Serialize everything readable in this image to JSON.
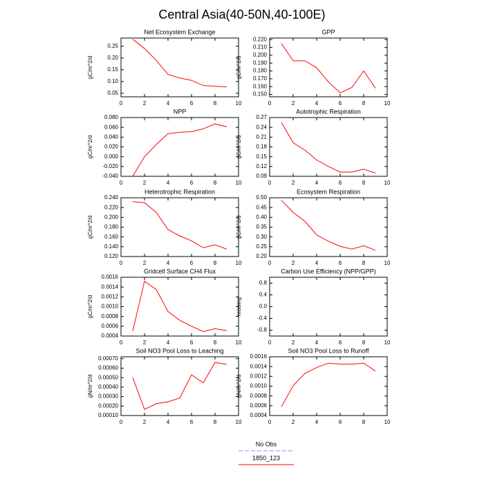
{
  "title": "Central Asia(40-50N,40-100E)",
  "legend": [
    {
      "name": "No Obs",
      "color": "#8c8cf0",
      "dash": true
    },
    {
      "name": "1850_123",
      "color": "#ff0000",
      "dash": false
    }
  ],
  "chart_data": [
    {
      "type": "line",
      "title": "Net Ecosystem Exchange",
      "ylabel": "gC/m^2/d",
      "xlim": [
        0,
        10
      ],
      "xticks": [
        0,
        2,
        4,
        6,
        8,
        10
      ],
      "ylim": [
        0.035,
        0.285
      ],
      "yticks": [
        0.05,
        {
          "value": 0.1,
          "label": "0.10"
        },
        0.15,
        {
          "value": 0.2,
          "label": "0.20"
        },
        0.25
      ],
      "x": [
        1,
        2,
        3,
        4,
        5,
        6,
        7,
        8,
        9
      ],
      "series": [
        {
          "color": "#ff0000",
          "values": [
            0.28,
            0.24,
            0.19,
            0.13,
            0.115,
            0.105,
            0.083,
            0.08,
            0.077
          ]
        }
      ]
    },
    {
      "type": "line",
      "title": "GPP",
      "ylabel": "gC/m^2/d",
      "xlim": [
        0,
        10
      ],
      "xticks": [
        0,
        2,
        4,
        6,
        8,
        10
      ],
      "ylim": [
        0.147,
        0.222
      ],
      "yticks": [
        {
          "value": 0.15,
          "label": "0.150"
        },
        {
          "value": 0.16,
          "label": "0.160"
        },
        {
          "value": 0.17,
          "label": "0.170"
        },
        {
          "value": 0.18,
          "label": "0.180"
        },
        {
          "value": 0.19,
          "label": "0.190"
        },
        {
          "value": 0.2,
          "label": "0.200"
        },
        {
          "value": 0.21,
          "label": "0.210"
        },
        {
          "value": 0.22,
          "label": "0.220"
        }
      ],
      "x": [
        1,
        2,
        3,
        4,
        5,
        6,
        7,
        8,
        9
      ],
      "series": [
        {
          "color": "#ff0000",
          "values": [
            0.215,
            0.193,
            0.193,
            0.184,
            0.166,
            0.152,
            0.159,
            0.18,
            0.158
          ]
        }
      ]
    },
    {
      "type": "line",
      "title": "NPP",
      "ylabel": "gC/m^2/d",
      "xlim": [
        0,
        10
      ],
      "xticks": [
        0,
        2,
        4,
        6,
        8,
        10
      ],
      "ylim": [
        -0.04,
        0.08
      ],
      "yticks": [
        {
          "value": -0.04,
          "label": "-0.040"
        },
        {
          "value": -0.02,
          "label": "-0.020"
        },
        {
          "value": 0,
          "label": "0.000"
        },
        {
          "value": 0.02,
          "label": "0.020"
        },
        {
          "value": 0.04,
          "label": "0.040"
        },
        {
          "value": 0.06,
          "label": "0.060"
        },
        {
          "value": 0.08,
          "label": "0.080"
        }
      ],
      "x": [
        1,
        2,
        3,
        4,
        5,
        6,
        7,
        8,
        9
      ],
      "series": [
        {
          "color": "#ff0000",
          "values": [
            -0.04,
            0.0,
            0.025,
            0.047,
            0.05,
            0.051,
            0.057,
            0.067,
            0.061
          ]
        }
      ]
    },
    {
      "type": "line",
      "title": "Autotrophic Respiration",
      "ylabel": "gC/m^2/d",
      "xlim": [
        0,
        10
      ],
      "xticks": [
        0,
        2,
        4,
        6,
        8,
        10
      ],
      "ylim": [
        0.09,
        0.27
      ],
      "yticks": [
        0.09,
        0.12,
        0.15,
        0.18,
        0.21,
        0.24,
        0.27
      ],
      "x": [
        1,
        2,
        3,
        4,
        5,
        6,
        7,
        8,
        9
      ],
      "series": [
        {
          "color": "#ff0000",
          "values": [
            0.255,
            0.193,
            0.17,
            0.14,
            0.12,
            0.103,
            0.103,
            0.112,
            0.1
          ]
        }
      ]
    },
    {
      "type": "line",
      "title": "Heterotrophic Respiration",
      "ylabel": "gC/m^2/d",
      "xlim": [
        0,
        10
      ],
      "xticks": [
        0,
        2,
        4,
        6,
        8,
        10
      ],
      "ylim": [
        0.12,
        0.24
      ],
      "yticks": [
        {
          "value": 0.12,
          "label": "0.120"
        },
        {
          "value": 0.14,
          "label": "0.140"
        },
        {
          "value": 0.16,
          "label": "0.160"
        },
        {
          "value": 0.18,
          "label": "0.180"
        },
        {
          "value": 0.2,
          "label": "0.200"
        },
        {
          "value": 0.22,
          "label": "0.220"
        },
        {
          "value": 0.24,
          "label": "0.240"
        }
      ],
      "x": [
        1,
        2,
        3,
        4,
        5,
        6,
        7,
        8,
        9
      ],
      "series": [
        {
          "color": "#ff0000",
          "values": [
            0.232,
            0.23,
            0.21,
            0.175,
            0.162,
            0.152,
            0.138,
            0.144,
            0.135
          ]
        }
      ]
    },
    {
      "type": "line",
      "title": "Ecosystem Respiration",
      "ylabel": "gC/m^2/d",
      "xlim": [
        0,
        10
      ],
      "xticks": [
        0,
        2,
        4,
        6,
        8,
        10
      ],
      "ylim": [
        0.2,
        0.5
      ],
      "yticks": [
        {
          "value": 0.2,
          "label": "0.20"
        },
        0.25,
        {
          "value": 0.3,
          "label": "0.30"
        },
        0.35,
        {
          "value": 0.4,
          "label": "0.40"
        },
        0.45,
        {
          "value": 0.5,
          "label": "0.50"
        }
      ],
      "x": [
        1,
        2,
        3,
        4,
        5,
        6,
        7,
        8,
        9
      ],
      "series": [
        {
          "color": "#ff0000",
          "values": [
            0.487,
            0.425,
            0.38,
            0.31,
            0.278,
            0.252,
            0.238,
            0.255,
            0.232
          ]
        }
      ]
    },
    {
      "type": "line",
      "title": "Gridcell Surface CH4 Flux",
      "ylabel": "gC/m^2/d",
      "xlim": [
        0,
        10
      ],
      "xticks": [
        0,
        2,
        4,
        6,
        8,
        10
      ],
      "ylim": [
        0.0004,
        0.0016
      ],
      "yticks": [
        0.0004,
        0.0006,
        0.0008,
        {
          "value": 0.001,
          "label": "0.0010"
        },
        0.0012,
        0.0014,
        0.0016
      ],
      "x": [
        1,
        2,
        3,
        4,
        5,
        6,
        7,
        8,
        9
      ],
      "series": [
        {
          "color": "#ff0000",
          "values": [
            0.0005,
            0.00152,
            0.00135,
            0.0009,
            0.00072,
            0.0006,
            0.00049,
            0.00055,
            0.00051
          ]
        }
      ]
    },
    {
      "type": "line",
      "title": "Carbon Use Efficiency (NPP/GPP)",
      "ylabel": "missing",
      "xlim": [
        0,
        10
      ],
      "xticks": [
        0,
        2,
        4,
        6,
        8,
        10
      ],
      "ylim": [
        -1,
        1
      ],
      "yticks": [
        -0.8,
        -0.4,
        {
          "value": 0,
          "label": "0.0"
        },
        0.4,
        0.8
      ]
    },
    {
      "type": "line",
      "title": "Soil NO3 Pool Loss to Leaching",
      "ylabel": "gN/m^2/d",
      "xlim": [
        0,
        10
      ],
      "xticks": [
        0,
        2,
        4,
        6,
        8,
        10
      ],
      "ylim": [
        0.0001,
        0.00072
      ],
      "yticks": [
        {
          "value": 0.0001,
          "label": "0.00010"
        },
        {
          "value": 0.0002,
          "label": "0.00020"
        },
        {
          "value": 0.0003,
          "label": "0.00030"
        },
        {
          "value": 0.0004,
          "label": "0.00040"
        },
        {
          "value": 0.0005,
          "label": "0.00050"
        },
        {
          "value": 0.0006,
          "label": "0.00060"
        },
        {
          "value": 0.0007,
          "label": "0.00070"
        }
      ],
      "x": [
        1,
        2,
        3,
        4,
        5,
        6,
        7,
        8,
        9
      ],
      "series": [
        {
          "color": "#ff0000",
          "values": [
            0.0005,
            0.000165,
            0.000225,
            0.000245,
            0.000285,
            0.00053,
            0.000445,
            0.00066,
            0.00064
          ]
        }
      ]
    },
    {
      "type": "line",
      "title": "Soil NO3 Pool Loss to Runoff",
      "ylabel": "gN/m^2/d",
      "xlim": [
        0,
        10
      ],
      "xticks": [
        0,
        2,
        4,
        6,
        8,
        10
      ],
      "ylim": [
        0.0004,
        0.0016
      ],
      "yticks": [
        0.0004,
        0.0006,
        0.0008,
        {
          "value": 0.001,
          "label": "0.0010"
        },
        0.0012,
        0.0014,
        0.0016
      ],
      "x": [
        1,
        2,
        3,
        4,
        5,
        6,
        7,
        8,
        9
      ],
      "series": [
        {
          "color": "#ff0000",
          "values": [
            0.00058,
            0.00101,
            0.00126,
            0.00138,
            0.00147,
            0.00145,
            0.00145,
            0.00147,
            0.00131
          ]
        }
      ]
    }
  ]
}
